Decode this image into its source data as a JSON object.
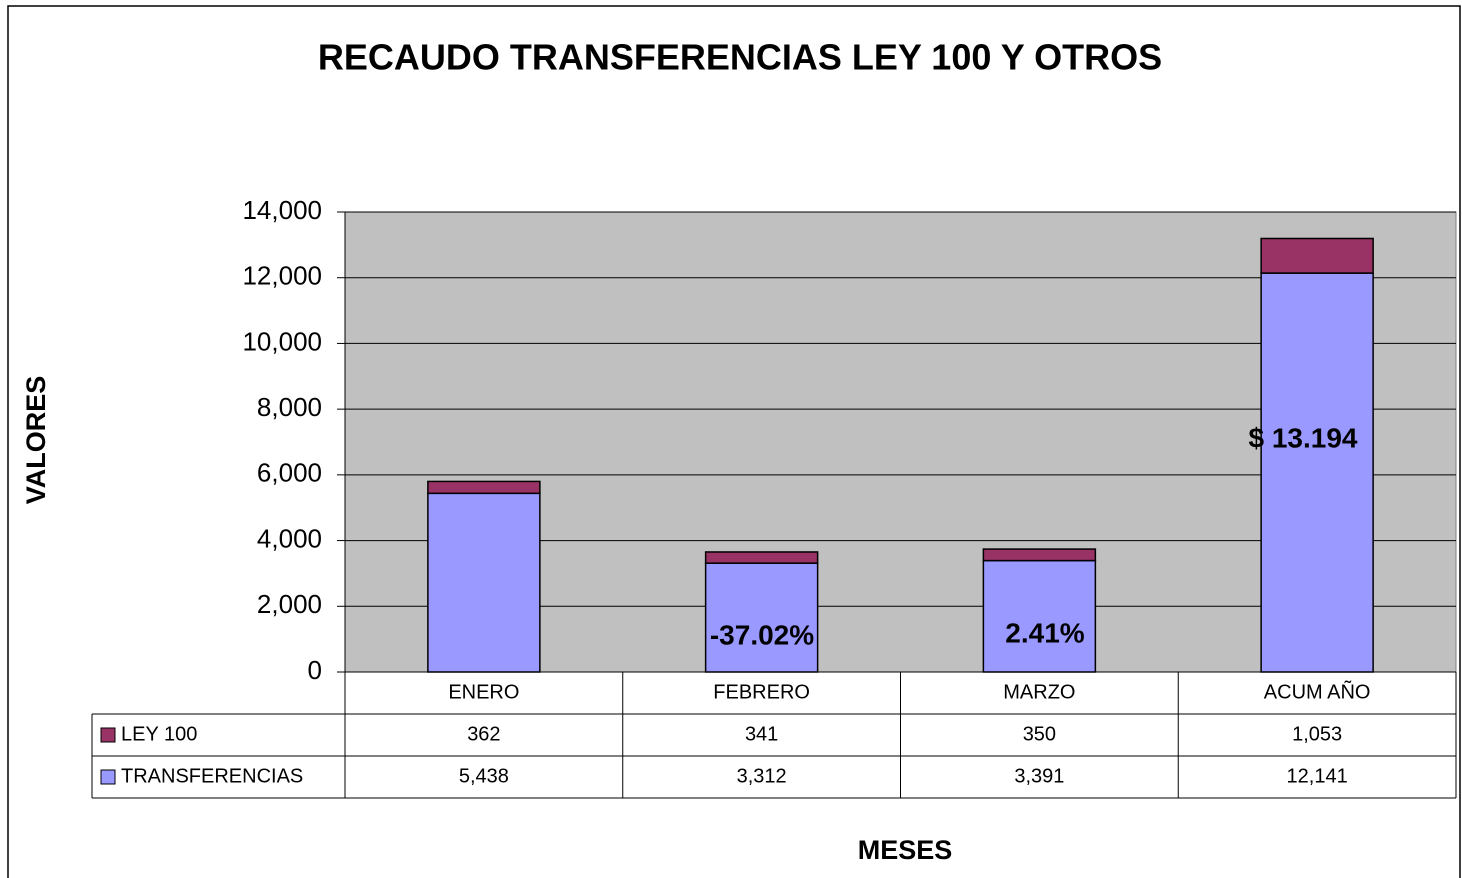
{
  "chart_data": {
    "type": "stacked_bar",
    "title": "RECAUDO TRANSFERENCIAS LEY 100 Y OTROS",
    "y_label": "VALORES",
    "x_label": "MESES",
    "categories": [
      "ENERO",
      "FEBRERO",
      "MARZO",
      "ACUM AÑO"
    ],
    "series": [
      {
        "name": "LEY 100",
        "color": "#993366",
        "values": [
          362,
          341,
          350,
          1053
        ],
        "value_labels": [
          "362",
          "341",
          "350",
          "1,053"
        ]
      },
      {
        "name": "TRANSFERENCIAS",
        "color": "#9999ff",
        "values": [
          5438,
          3312,
          3391,
          12141
        ],
        "value_labels": [
          "5,438",
          "3,312",
          "3,391",
          "12,141"
        ]
      }
    ],
    "ylim": [
      0,
      14000
    ],
    "yticks": [
      0,
      {
        "value": 2000,
        "label": "2,000"
      },
      {
        "value": 4000,
        "label": "4,000"
      },
      {
        "value": 6000,
        "label": "6,000"
      },
      {
        "value": 8000,
        "label": "8,000"
      },
      {
        "value": 10000,
        "label": "10,000"
      },
      {
        "value": 12000,
        "label": "12,000"
      },
      {
        "value": 14000,
        "label": "14,000"
      }
    ],
    "grid": true,
    "annotations": [
      "-37.02%",
      "2.41%",
      "$ 13.194"
    ]
  }
}
